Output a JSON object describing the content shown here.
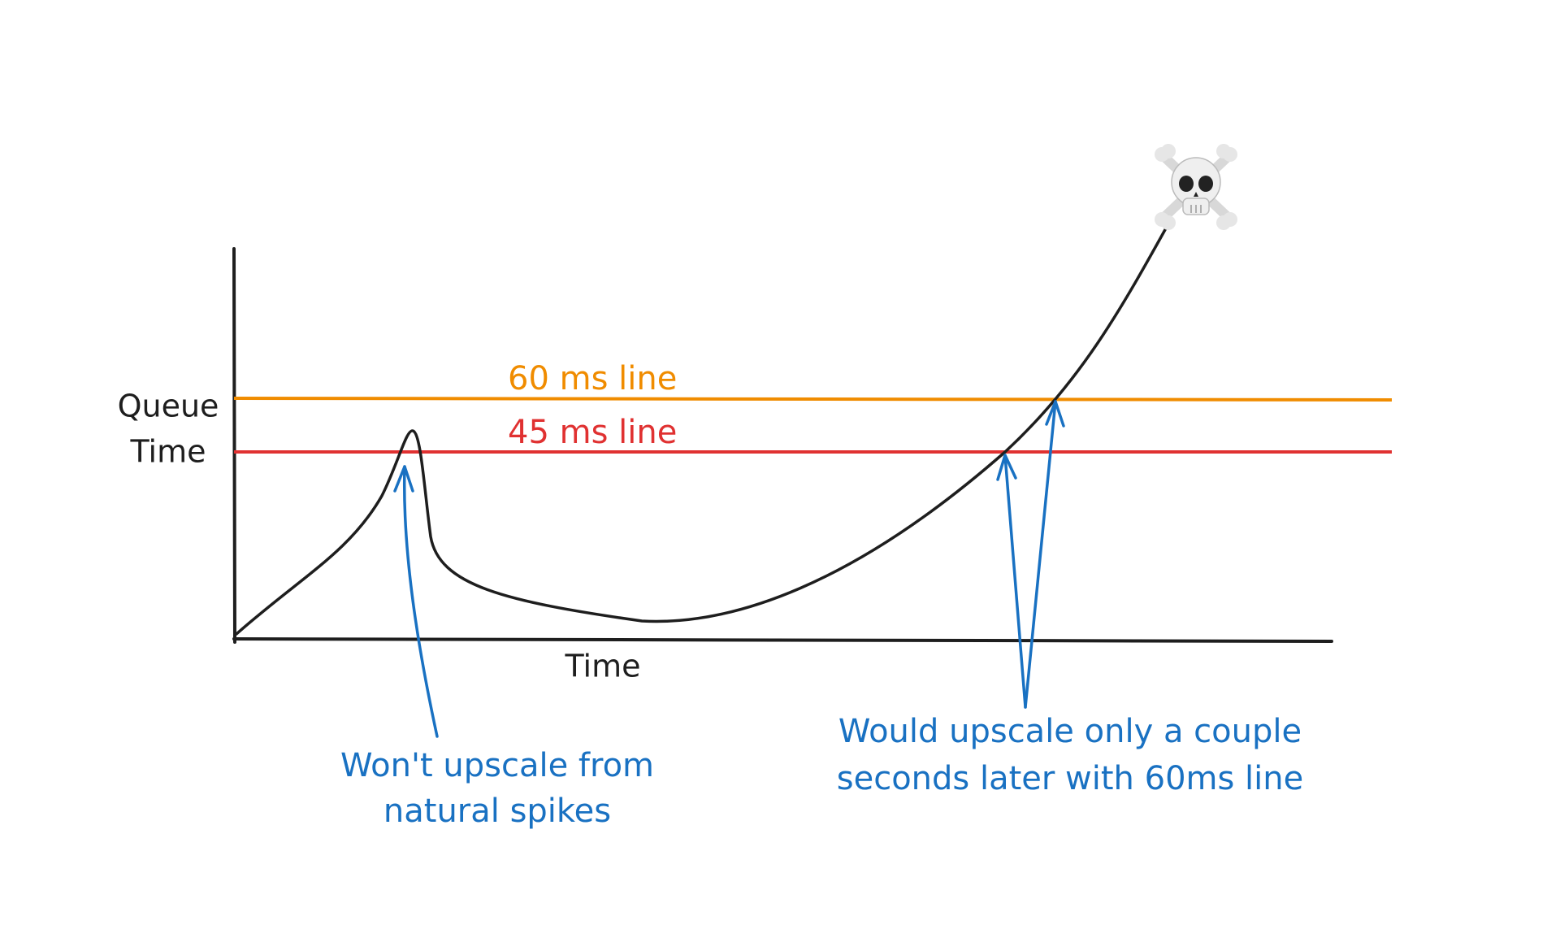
{
  "axes": {
    "y_label": [
      "Queue",
      "Time"
    ],
    "x_label": "Time"
  },
  "thresholds": [
    {
      "label": "60 ms line",
      "color": "#f08c00"
    },
    {
      "label": "45 ms line",
      "color": "#e03131"
    }
  ],
  "annotations": [
    {
      "lines": [
        "Won't upscale from",
        "natural spikes"
      ]
    },
    {
      "lines": [
        "Would upscale only a couple",
        "seconds later with 60ms line"
      ]
    }
  ]
}
